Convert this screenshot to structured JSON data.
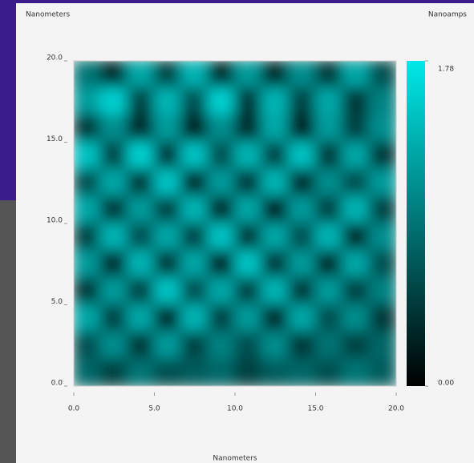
{
  "chart_data": {
    "type": "heatmap",
    "x_label": "Nanometers",
    "y_label": "Nanometers",
    "colorbar_label": "Nanoamps",
    "xlim": [
      0,
      20
    ],
    "ylim": [
      0,
      20
    ],
    "xticks": [
      {
        "value": 0,
        "label": "0.0"
      },
      {
        "value": 5,
        "label": "5.0"
      },
      {
        "value": 10,
        "label": "10.0"
      },
      {
        "value": 15,
        "label": "15.0"
      },
      {
        "value": 20,
        "label": "20.0"
      }
    ],
    "yticks": [
      {
        "value": 0,
        "label": "0.0"
      },
      {
        "value": 5,
        "label": "5.0"
      },
      {
        "value": 10,
        "label": "10.0"
      },
      {
        "value": 15,
        "label": "15.0"
      },
      {
        "value": 20,
        "label": "20.0"
      }
    ],
    "zlim": [
      0,
      1.78
    ],
    "zticks": [
      {
        "value": 0,
        "label": "0.00"
      },
      {
        "value": 1.78,
        "label": "1.78"
      }
    ],
    "colormap": [
      "#000000",
      "#00e8e8"
    ],
    "z": [
      [
        0.9,
        0.3,
        1.3,
        0.5,
        1.4,
        0.3,
        1.2,
        0.3,
        1.1,
        0.4,
        1.3,
        0.6
      ],
      [
        1.2,
        1.6,
        0.5,
        1.4,
        0.6,
        1.6,
        0.4,
        1.4,
        0.5,
        1.3,
        0.4,
        1.0
      ],
      [
        0.4,
        1.1,
        0.3,
        1.2,
        0.2,
        1.1,
        0.3,
        1.3,
        0.2,
        1.2,
        0.5,
        1.1
      ],
      [
        1.5,
        0.5,
        1.6,
        0.4,
        1.5,
        0.6,
        1.4,
        0.5,
        1.5,
        0.4,
        1.3,
        0.4
      ],
      [
        0.6,
        1.3,
        0.4,
        1.5,
        0.3,
        1.2,
        0.4,
        1.4,
        0.3,
        1.1,
        0.6,
        1.2
      ],
      [
        1.3,
        0.4,
        1.2,
        0.5,
        1.4,
        0.3,
        1.3,
        0.2,
        1.2,
        0.5,
        1.4,
        0.5
      ],
      [
        0.5,
        1.4,
        0.6,
        1.3,
        0.5,
        1.5,
        0.4,
        1.3,
        0.6,
        1.4,
        0.3,
        1.1
      ],
      [
        1.2,
        0.3,
        1.4,
        0.4,
        1.3,
        0.2,
        1.5,
        0.4,
        1.2,
        0.3,
        1.3,
        0.6
      ],
      [
        0.4,
        1.2,
        0.5,
        1.5,
        0.6,
        1.3,
        0.5,
        1.4,
        0.4,
        1.2,
        0.5,
        1.0
      ],
      [
        1.3,
        0.5,
        1.3,
        0.3,
        1.4,
        0.5,
        1.2,
        0.3,
        1.3,
        0.6,
        1.1,
        0.4
      ],
      [
        0.6,
        1.1,
        0.4,
        1.2,
        0.5,
        1.0,
        0.6,
        1.1,
        0.4,
        0.9,
        0.5,
        0.8
      ],
      [
        0.8,
        0.5,
        0.9,
        0.6,
        0.7,
        0.8,
        0.5,
        0.7,
        0.8,
        0.6,
        0.9,
        0.7
      ]
    ]
  }
}
